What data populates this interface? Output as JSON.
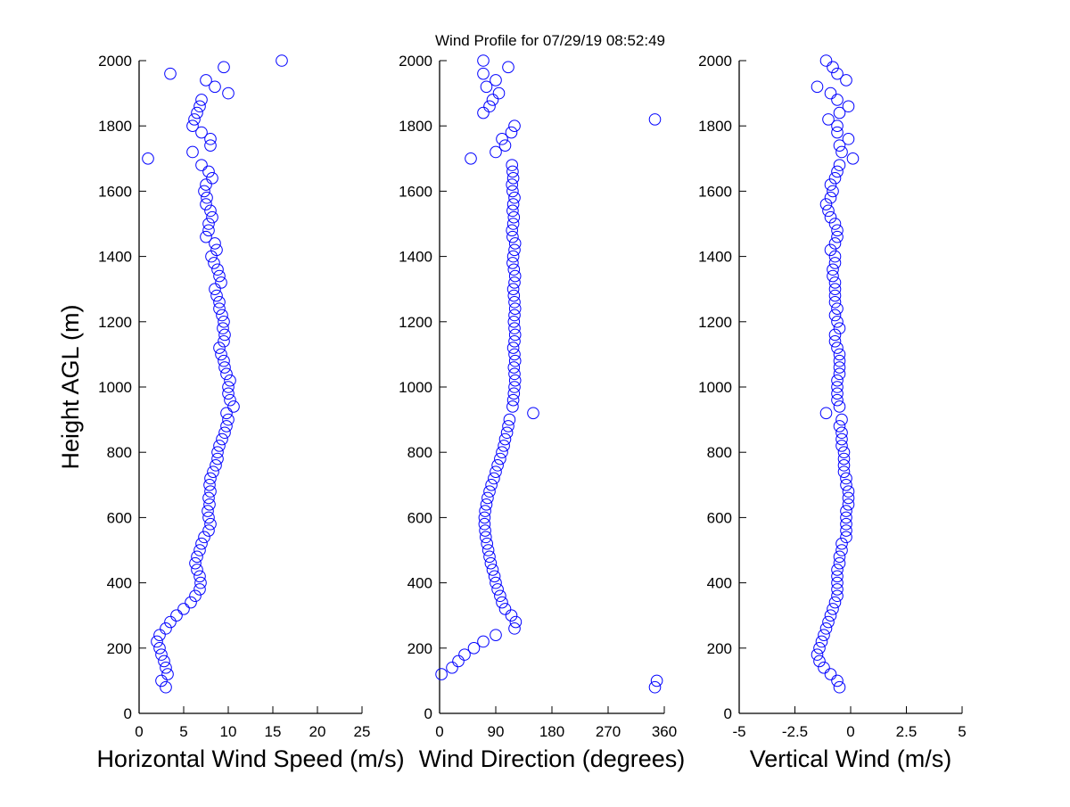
{
  "title": "Wind Profile for  07/29/19 08:52:49",
  "ylabel": "Height AGL (m)",
  "marker_color": "#0000ff",
  "chart_data": [
    {
      "type": "scatter",
      "xlabel": "Horizontal Wind Speed (m/s)",
      "ylabel": "Height AGL (m)",
      "xlim": [
        0,
        25
      ],
      "ylim": [
        0,
        2000
      ],
      "xticks": [
        "0",
        "5",
        "10",
        "15",
        "20",
        "25"
      ],
      "yticks": [
        "0",
        "200",
        "400",
        "600",
        "800",
        "1000",
        "1200",
        "1400",
        "1600",
        "1800",
        "2000"
      ],
      "grid": false,
      "heights": [
        80,
        100,
        120,
        140,
        160,
        180,
        200,
        220,
        240,
        260,
        280,
        300,
        320,
        340,
        360,
        380,
        400,
        420,
        440,
        460,
        480,
        500,
        520,
        540,
        560,
        580,
        600,
        620,
        640,
        660,
        680,
        700,
        720,
        740,
        760,
        780,
        800,
        820,
        840,
        860,
        880,
        900,
        920,
        940,
        960,
        980,
        1000,
        1020,
        1040,
        1060,
        1080,
        1100,
        1120,
        1140,
        1160,
        1180,
        1200,
        1220,
        1240,
        1260,
        1280,
        1300,
        1320,
        1340,
        1360,
        1380,
        1400,
        1420,
        1440,
        1460,
        1480,
        1500,
        1520,
        1540,
        1560,
        1580,
        1600,
        1620,
        1640,
        1660,
        1680,
        1700,
        1720,
        1740,
        1760,
        1780,
        1800,
        1820,
        1840,
        1860,
        1880,
        1900,
        1920,
        1940,
        1960,
        1980,
        2000
      ],
      "values": [
        3.0,
        2.5,
        3.2,
        3.0,
        2.8,
        2.5,
        2.3,
        2.0,
        2.3,
        3.0,
        3.5,
        4.2,
        5.0,
        5.8,
        6.3,
        6.8,
        6.9,
        6.8,
        6.5,
        6.3,
        6.5,
        6.8,
        7.0,
        7.3,
        7.8,
        8.0,
        7.8,
        7.7,
        7.9,
        7.8,
        8.0,
        7.9,
        8.0,
        8.3,
        8.6,
        8.8,
        8.8,
        9.0,
        9.3,
        9.6,
        9.8,
        10.0,
        9.8,
        10.6,
        10.2,
        10.0,
        10.0,
        10.2,
        9.8,
        9.6,
        9.5,
        9.2,
        9.0,
        9.5,
        9.6,
        9.4,
        9.5,
        9.3,
        9.0,
        9.0,
        8.7,
        8.5,
        9.2,
        9.0,
        8.8,
        8.4,
        8.1,
        8.7,
        8.5,
        7.5,
        7.8,
        7.8,
        8.2,
        8.0,
        7.5,
        7.6,
        7.3,
        7.5,
        8.2,
        7.8,
        7.0,
        1.0,
        6.0,
        8.0,
        8.0,
        7.0,
        6.0,
        6.2,
        6.5,
        6.8,
        7.0,
        10.0,
        8.5,
        7.5,
        3.5,
        9.5,
        16.0
      ]
    },
    {
      "type": "scatter",
      "xlabel": "Wind Direction (degrees)",
      "xlim": [
        0,
        360
      ],
      "ylim": [
        0,
        2000
      ],
      "xticks": [
        "0",
        "90",
        "180",
        "270",
        "360"
      ],
      "yticks": [
        "0",
        "200",
        "400",
        "600",
        "800",
        "1000",
        "1200",
        "1400",
        "1600",
        "1800",
        "2000"
      ],
      "grid": false,
      "values": [
        345,
        348,
        3,
        20,
        30,
        40,
        55,
        70,
        90,
        120,
        122,
        115,
        105,
        100,
        97,
        93,
        90,
        88,
        85,
        82,
        80,
        78,
        76,
        74,
        73,
        72,
        72,
        73,
        75,
        77,
        80,
        83,
        87,
        90,
        93,
        97,
        100,
        103,
        105,
        108,
        110,
        112,
        150,
        117,
        118,
        119,
        120,
        121,
        120,
        119,
        121,
        120,
        118,
        120,
        121,
        120,
        119,
        120,
        121,
        120,
        119,
        118,
        120,
        121,
        119,
        117,
        118,
        120,
        121,
        117,
        116,
        118,
        119,
        117,
        118,
        120,
        117,
        116,
        118,
        117,
        116,
        50,
        90,
        105,
        100,
        115,
        120,
        345,
        70,
        80,
        85,
        95,
        75,
        90,
        70,
        110,
        70
      ]
    },
    {
      "type": "scatter",
      "xlabel": "Vertical Wind (m/s)",
      "xlim": [
        -5,
        5
      ],
      "ylim": [
        0,
        2000
      ],
      "xticks": [
        "-5",
        "-2.5",
        "0",
        "2.5",
        "5"
      ],
      "yticks": [
        "0",
        "200",
        "400",
        "600",
        "800",
        "1000",
        "1200",
        "1400",
        "1600",
        "1800",
        "2000"
      ],
      "grid": false,
      "values": [
        -0.5,
        -0.6,
        -0.9,
        -1.2,
        -1.4,
        -1.5,
        -1.4,
        -1.3,
        -1.2,
        -1.1,
        -1.0,
        -0.9,
        -0.8,
        -0.7,
        -0.6,
        -0.6,
        -0.6,
        -0.6,
        -0.6,
        -0.5,
        -0.5,
        -0.4,
        -0.4,
        -0.2,
        -0.2,
        -0.2,
        -0.2,
        -0.2,
        -0.1,
        -0.1,
        -0.1,
        -0.2,
        -0.2,
        -0.3,
        -0.3,
        -0.3,
        -0.3,
        -0.4,
        -0.4,
        -0.4,
        -0.5,
        -0.4,
        -1.1,
        -0.5,
        -0.6,
        -0.6,
        -0.6,
        -0.6,
        -0.5,
        -0.5,
        -0.5,
        -0.5,
        -0.6,
        -0.7,
        -0.7,
        -0.5,
        -0.6,
        -0.7,
        -0.6,
        -0.7,
        -0.7,
        -0.7,
        -0.7,
        -0.8,
        -0.8,
        -0.7,
        -0.7,
        -0.9,
        -0.7,
        -0.6,
        -0.6,
        -0.7,
        -0.9,
        -1.0,
        -1.1,
        -0.9,
        -0.8,
        -0.9,
        -0.7,
        -0.6,
        -0.5,
        0.1,
        -0.4,
        -0.5,
        -0.1,
        -0.6,
        -0.6,
        -1.0,
        -0.5,
        -0.1,
        -0.6,
        -0.9,
        -1.5,
        -0.2,
        -0.6,
        -0.8,
        -1.1
      ]
    }
  ]
}
